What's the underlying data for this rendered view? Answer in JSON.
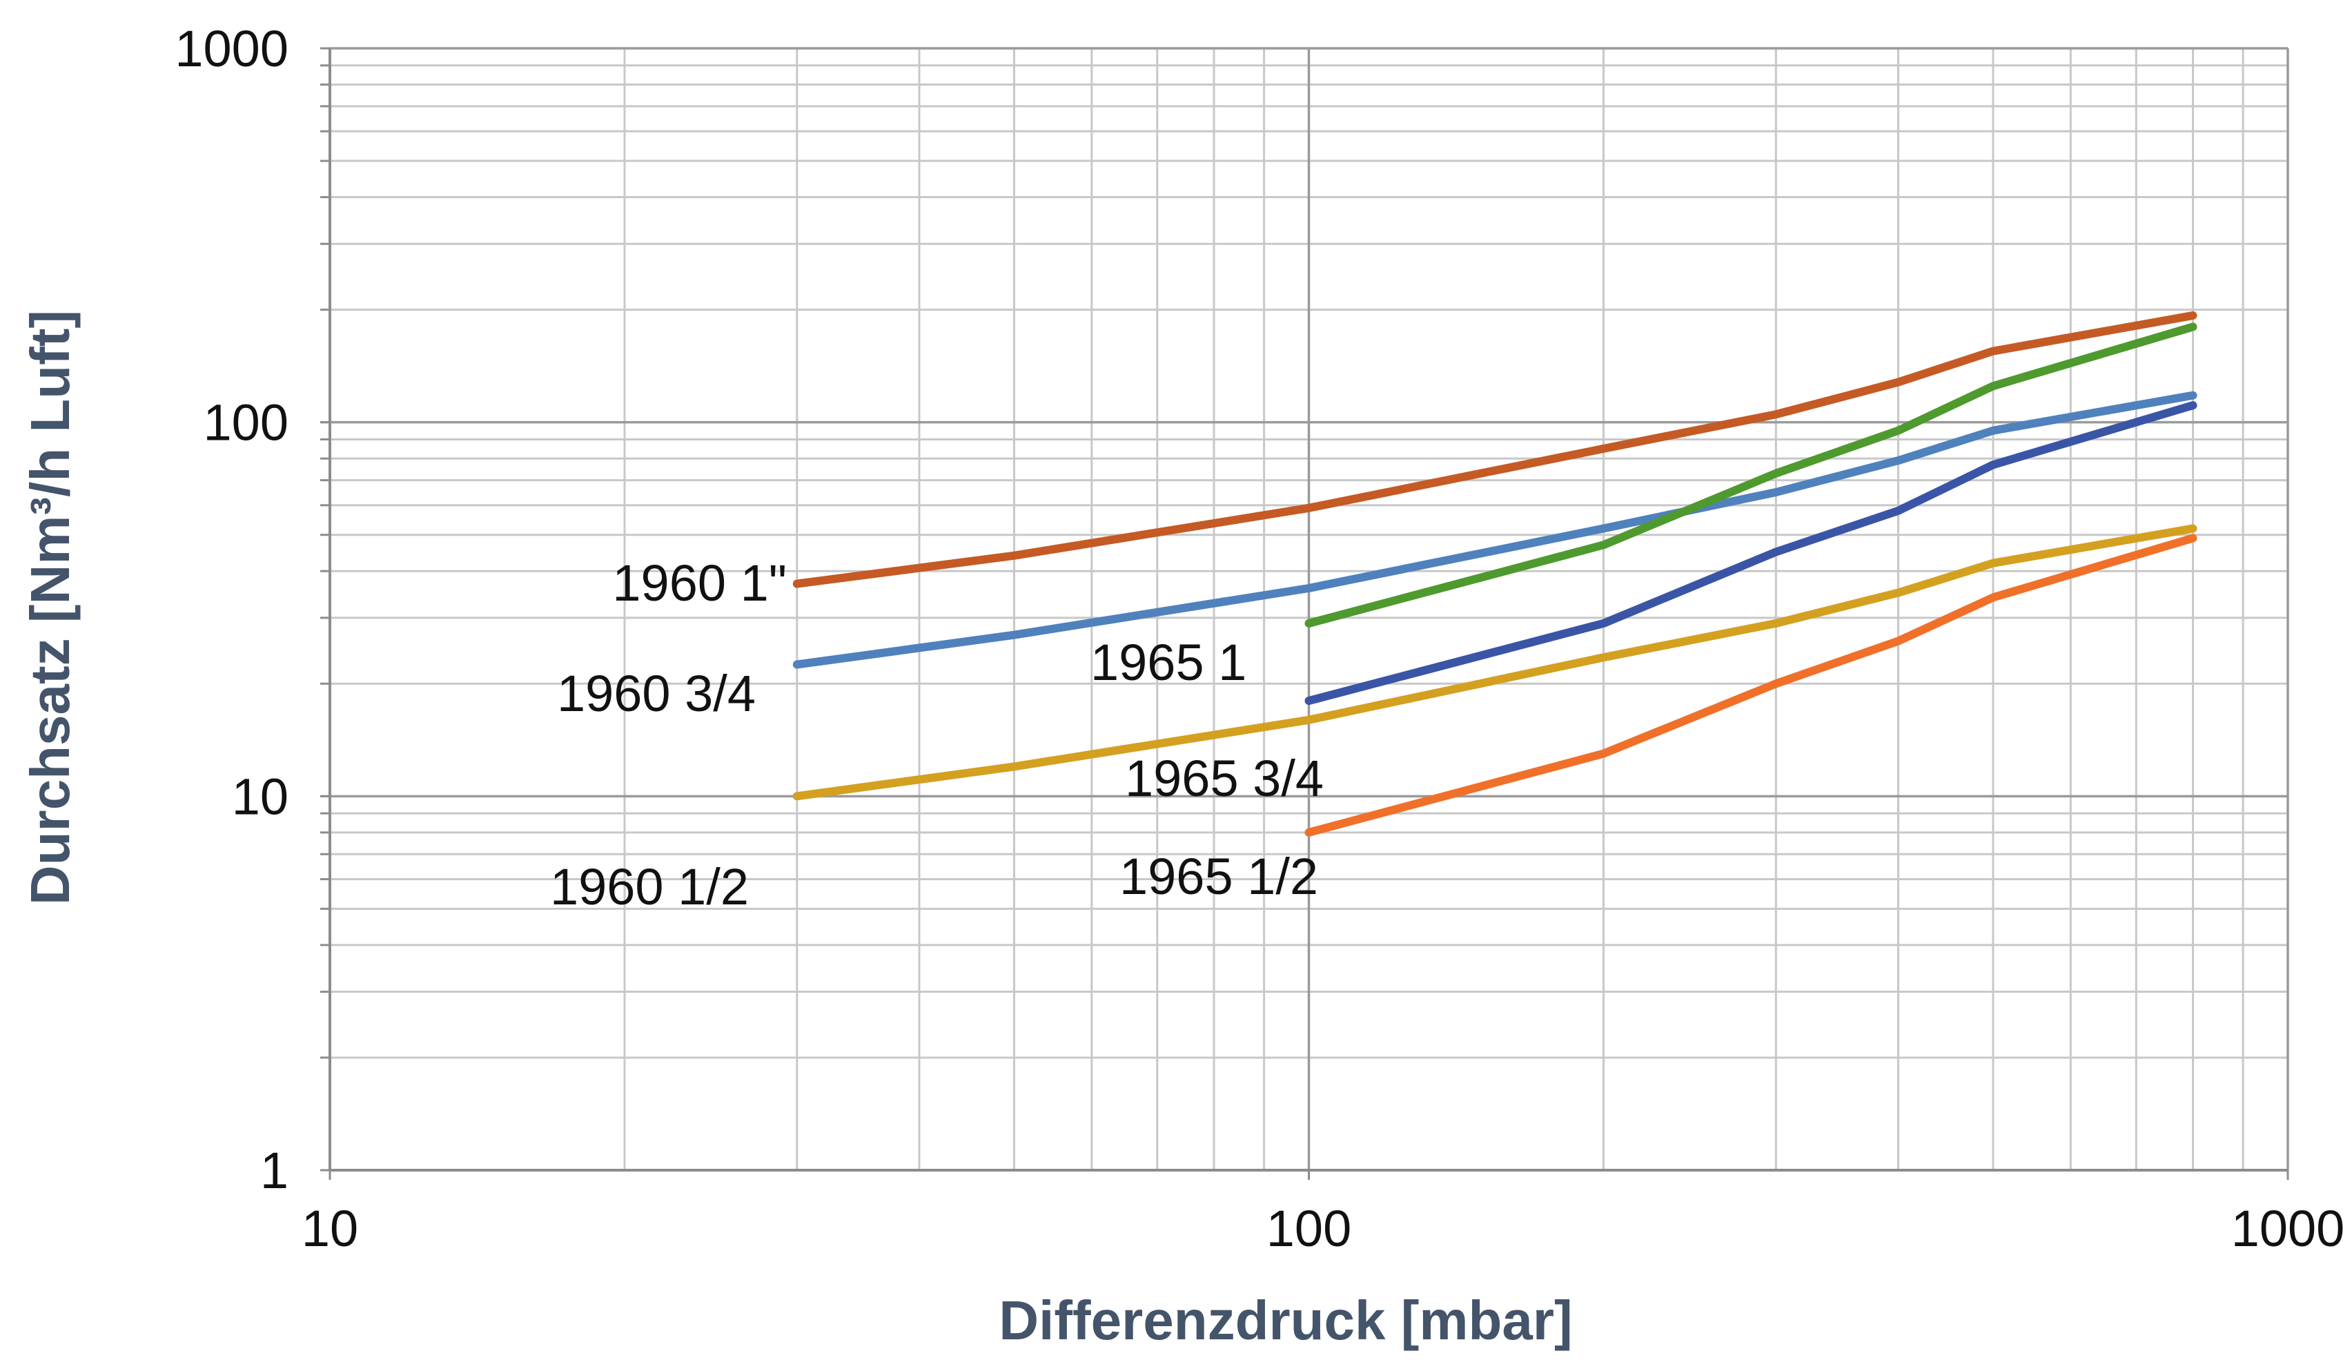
{
  "chart_data": {
    "type": "line",
    "xscale": "log",
    "yscale": "log",
    "xlim": [
      10,
      1000
    ],
    "ylim": [
      1,
      1000
    ],
    "grid": true,
    "xlabel": "Differenzdruck [mbar]",
    "ylabel": "Durchsatz [Nm³/h Luft]",
    "xticks": [
      "10",
      "100",
      "1000"
    ],
    "yticks": [
      "1",
      "10",
      "100",
      "1000"
    ],
    "legend": "inline labels",
    "series": [
      {
        "name": "1960 1\"",
        "color": "#c55a24",
        "x": [
          30,
          50,
          100,
          200,
          300,
          400,
          500,
          800
        ],
        "y": [
          37,
          44,
          59,
          85,
          105,
          128,
          155,
          193
        ]
      },
      {
        "name": "1960 3/4",
        "color": "#4f81bd",
        "x": [
          30,
          50,
          100,
          200,
          300,
          400,
          500,
          800
        ],
        "y": [
          22.5,
          27,
          36,
          52,
          65,
          79,
          95,
          118
        ]
      },
      {
        "name": "1965 1",
        "color": "#4e9a2e",
        "x": [
          100,
          200,
          300,
          400,
          500,
          800
        ],
        "y": [
          29,
          47,
          73,
          95,
          125,
          180
        ]
      },
      {
        "name": "1965 3/4",
        "color": "#3a55a6",
        "x": [
          100,
          200,
          300,
          400,
          500,
          800
        ],
        "y": [
          18,
          29,
          45,
          58,
          77,
          111
        ]
      },
      {
        "name": "1960 1/2",
        "color": "#d4a020",
        "x": [
          30,
          50,
          100,
          200,
          300,
          400,
          500,
          800
        ],
        "y": [
          10,
          12,
          16,
          23.5,
          29,
          35,
          42,
          52
        ]
      },
      {
        "name": "1965 1/2",
        "color": "#f0702a",
        "x": [
          100,
          200,
          300,
          400,
          500,
          800
        ],
        "y": [
          8,
          13,
          20,
          26,
          34,
          49
        ]
      }
    ]
  }
}
